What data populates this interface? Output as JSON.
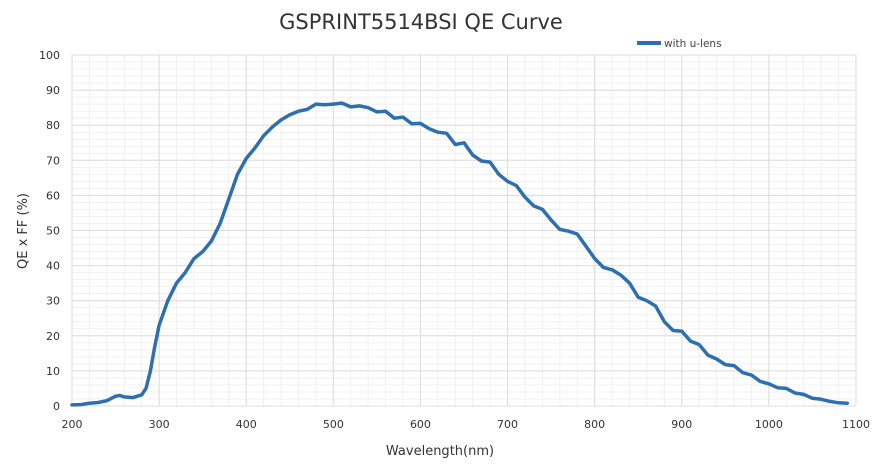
{
  "chart_data": {
    "type": "line",
    "title": "GSPRINT5514BSI QE Curve",
    "xlabel": "Wavelength(nm)",
    "ylabel": "QE x FF (%)",
    "xlim": [
      200,
      1100
    ],
    "ylim": [
      0,
      100
    ],
    "xticks": [
      200,
      300,
      400,
      500,
      600,
      700,
      800,
      900,
      1000,
      1100
    ],
    "yticks": [
      0,
      10,
      20,
      30,
      40,
      50,
      60,
      70,
      80,
      90,
      100
    ],
    "grid": true,
    "legend_position": "top-right",
    "series": [
      {
        "name": "with u-lens",
        "color": "#2e6fb0",
        "x": [
          200,
          210,
          220,
          230,
          240,
          250,
          255,
          260,
          270,
          280,
          285,
          290,
          295,
          300,
          310,
          320,
          330,
          340,
          350,
          360,
          370,
          380,
          390,
          400,
          410,
          420,
          430,
          440,
          450,
          460,
          470,
          480,
          490,
          500,
          510,
          520,
          530,
          540,
          550,
          560,
          570,
          580,
          590,
          600,
          610,
          620,
          630,
          640,
          650,
          660,
          670,
          680,
          690,
          700,
          710,
          720,
          730,
          740,
          750,
          760,
          770,
          780,
          790,
          800,
          810,
          820,
          830,
          840,
          850,
          860,
          870,
          880,
          890,
          900,
          910,
          920,
          930,
          940,
          950,
          960,
          970,
          980,
          990,
          1000,
          1010,
          1020,
          1030,
          1040,
          1050,
          1060,
          1070,
          1080,
          1090
        ],
        "y": [
          0.3,
          0.4,
          0.8,
          1.0,
          1.5,
          2.8,
          3.0,
          2.6,
          2.4,
          3.2,
          5,
          10,
          17,
          23,
          30,
          35,
          38,
          42,
          44,
          47,
          52,
          59,
          66,
          70.5,
          73.5,
          77,
          79.5,
          81.5,
          83,
          84,
          84.5,
          86,
          85.8,
          86,
          86.3,
          85.2,
          85.5,
          85,
          83.8,
          84,
          82,
          82.3,
          80.4,
          80.5,
          79,
          78,
          77.7,
          74.5,
          75,
          71.5,
          69.8,
          69.5,
          66,
          64,
          62.8,
          59.5,
          57,
          56,
          53,
          50.3,
          49.8,
          49,
          45.5,
          42,
          39.5,
          38.8,
          37.3,
          35,
          31,
          30,
          28.5,
          24,
          21.5,
          21.3,
          18.5,
          17.5,
          14.5,
          13.4,
          11.8,
          11.5,
          9.5,
          8.8,
          7,
          6.3,
          5.2,
          5,
          3.7,
          3.3,
          2.2,
          1.9,
          1.3,
          0.9,
          0.8
        ]
      }
    ]
  }
}
